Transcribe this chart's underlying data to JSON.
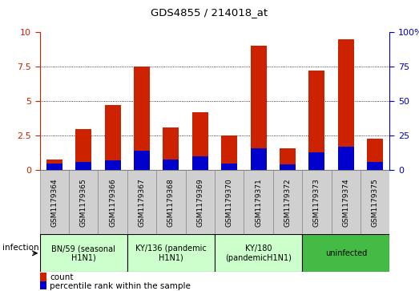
{
  "title": "GDS4855 / 214018_at",
  "samples": [
    "GSM1179364",
    "GSM1179365",
    "GSM1179366",
    "GSM1179367",
    "GSM1179368",
    "GSM1179369",
    "GSM1179370",
    "GSM1179371",
    "GSM1179372",
    "GSM1179373",
    "GSM1179374",
    "GSM1179375"
  ],
  "count_values": [
    0.8,
    3.0,
    4.7,
    7.5,
    3.1,
    4.2,
    2.5,
    9.0,
    1.6,
    7.2,
    9.5,
    2.3
  ],
  "percentile_values": [
    5.0,
    6.0,
    7.0,
    14.0,
    8.0,
    10.0,
    5.0,
    16.0,
    4.0,
    13.0,
    17.0,
    6.0
  ],
  "bar_width": 0.55,
  "count_color": "#cc2200",
  "percentile_color": "#0000cc",
  "ylim_left": [
    0,
    10
  ],
  "ylim_right": [
    0,
    100
  ],
  "yticks_left": [
    0,
    2.5,
    5,
    7.5,
    10
  ],
  "yticks_right": [
    0,
    25,
    50,
    75,
    100
  ],
  "groups": [
    {
      "label": "BN/59 (seasonal\nH1N1)",
      "start": 1,
      "end": 3,
      "color": "#ccffcc"
    },
    {
      "label": "KY/136 (pandemic\nH1N1)",
      "start": 4,
      "end": 6,
      "color": "#ccffcc"
    },
    {
      "label": "KY/180\n(pandemicH1N1)",
      "start": 7,
      "end": 9,
      "color": "#ccffcc"
    },
    {
      "label": "uninfected",
      "start": 10,
      "end": 12,
      "color": "#44bb44"
    }
  ],
  "legend_count": "count",
  "legend_percentile": "percentile rank within the sample",
  "infection_label": "infection",
  "background_color": "#ffffff",
  "tick_color_left": "#cc2200",
  "tick_color_right": "#0000cc",
  "sample_box_color": "#d0d0d0",
  "sample_box_border": "#888888"
}
